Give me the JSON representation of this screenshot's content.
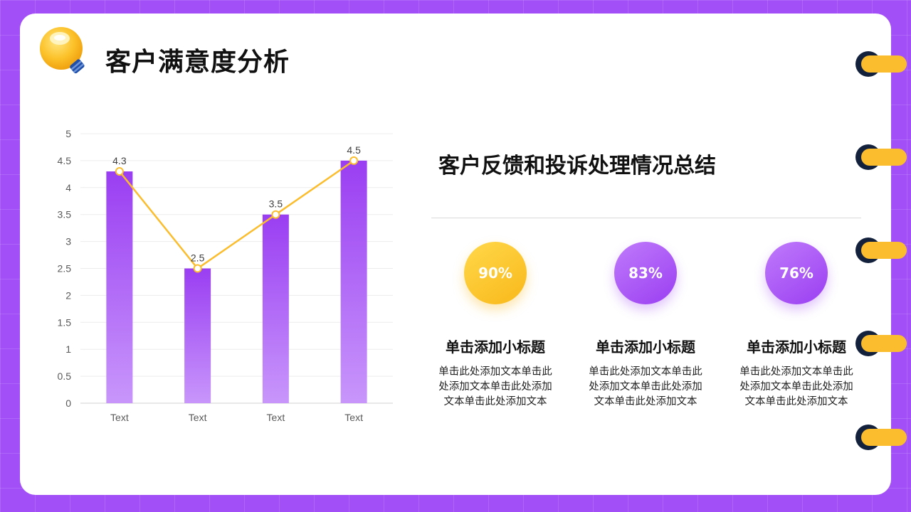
{
  "page": {
    "title": "客户满意度分析",
    "subtitle": "客户反馈和投诉处理情况总结"
  },
  "stats": [
    {
      "value": "90%",
      "title": "单击添加小标题",
      "text": "单击此处添加文本单击此处添加文本单击此处添加文本单击此处添加文本",
      "color": "#f9b81a"
    },
    {
      "value": "83%",
      "title": "单击添加小标题",
      "text": "单击此处添加文本单击此处添加文本单击此处添加文本单击此处添加文本",
      "color": "#9a3ef2"
    },
    {
      "value": "76%",
      "title": "单击添加小标题",
      "text": "单击此处添加文本单击此处添加文本单击此处添加文本单击此处添加文本",
      "color": "#9a3ef2"
    }
  ],
  "colors": {
    "background": "#a24ff7",
    "bar_top": "#9a3ef2",
    "bar_bottom": "#c896fb",
    "line": "#fbbd2e",
    "accent": "#fbbd2e"
  },
  "icons": [
    "lightbulb-icon",
    "binder-ring-icon"
  ],
  "chart_data": {
    "type": "bar",
    "categories": [
      "Text",
      "Text",
      "Text",
      "Text"
    ],
    "series": [
      {
        "type": "bar",
        "values": [
          4.3,
          2.5,
          3.5,
          4.5
        ]
      },
      {
        "type": "line",
        "values": [
          4.3,
          2.5,
          3.5,
          4.5
        ]
      }
    ],
    "data_labels": [
      "4.3",
      "2.5",
      "3.5",
      "4.5"
    ],
    "yticks": [
      0,
      0.5,
      1,
      1.5,
      2,
      2.5,
      3,
      3.5,
      4,
      4.5,
      5
    ],
    "ylim": [
      0,
      5
    ],
    "grid": true,
    "title": "",
    "xlabel": "",
    "ylabel": ""
  }
}
